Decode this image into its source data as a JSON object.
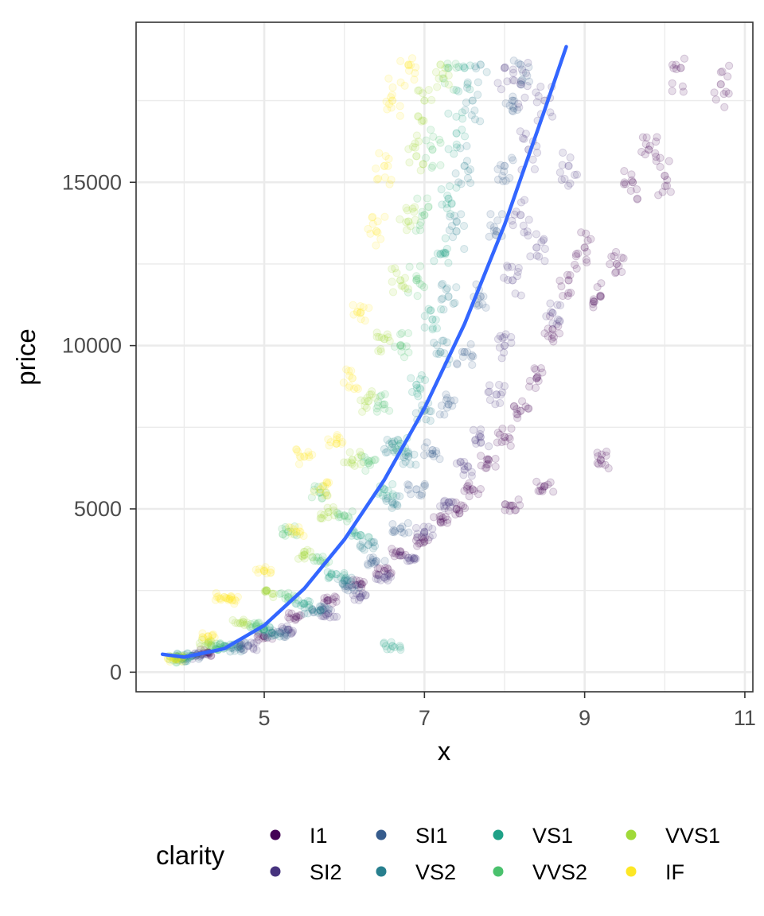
{
  "chart_data": {
    "type": "scatter",
    "xlabel": "x",
    "ylabel": "price",
    "xlim": [
      3.4,
      11.1
    ],
    "ylim": [
      -600,
      19900
    ],
    "x_ticks": [
      5,
      7,
      9,
      11
    ],
    "x_tick_labels": [
      "5",
      "7",
      "9",
      "11"
    ],
    "y_ticks": [
      0,
      5000,
      10000,
      15000
    ],
    "y_tick_labels": [
      "0",
      "5000",
      "10000",
      "15000"
    ],
    "x_minor_ticks": [
      4,
      6,
      8,
      10
    ],
    "y_minor_ticks": [
      2500,
      7500,
      12500,
      17500
    ],
    "grid": true,
    "legend": {
      "title": "clarity",
      "placement": "bottom",
      "items": [
        {
          "label": "I1",
          "color": "#440154"
        },
        {
          "label": "SI2",
          "color": "#46337E"
        },
        {
          "label": "SI1",
          "color": "#365C8D"
        },
        {
          "label": "VS2",
          "color": "#277F8E"
        },
        {
          "label": "VS1",
          "color": "#1FA187"
        },
        {
          "label": "VVS2",
          "color": "#4AC16D"
        },
        {
          "label": "VVS1",
          "color": "#A0DA39"
        },
        {
          "label": "IF",
          "color": "#FDE725"
        }
      ]
    },
    "series": [
      {
        "name": "I1",
        "color": "#440154",
        "points": [
          [
            4.3,
            600
          ],
          [
            5.0,
            1100
          ],
          [
            5.4,
            1700
          ],
          [
            5.8,
            2200
          ],
          [
            6.2,
            2700
          ],
          [
            6.5,
            3100
          ],
          [
            6.7,
            3700
          ],
          [
            7.0,
            4000
          ],
          [
            7.2,
            4600
          ],
          [
            7.4,
            5000
          ],
          [
            7.6,
            5600
          ],
          [
            7.8,
            6500
          ],
          [
            8.0,
            7200
          ],
          [
            8.2,
            8000
          ],
          [
            8.4,
            9000
          ],
          [
            8.6,
            10500
          ],
          [
            8.8,
            12000
          ],
          [
            9.0,
            13000
          ],
          [
            9.2,
            11500
          ],
          [
            9.4,
            12500
          ],
          [
            9.6,
            15000
          ],
          [
            9.8,
            16000
          ],
          [
            10.0,
            15200
          ],
          [
            10.2,
            18500
          ],
          [
            10.7,
            18000
          ],
          [
            9.2,
            6500
          ],
          [
            8.5,
            5700
          ],
          [
            8.1,
            5100
          ]
        ]
      },
      {
        "name": "SI2",
        "color": "#46337E",
        "points": [
          [
            4.2,
            500
          ],
          [
            4.8,
            800
          ],
          [
            5.3,
            1300
          ],
          [
            5.8,
            1800
          ],
          [
            6.2,
            2300
          ],
          [
            6.5,
            2900
          ],
          [
            6.8,
            3500
          ],
          [
            7.0,
            4300
          ],
          [
            7.3,
            5200
          ],
          [
            7.5,
            6200
          ],
          [
            7.7,
            7200
          ],
          [
            7.9,
            8500
          ],
          [
            8.0,
            10000
          ],
          [
            8.1,
            12000
          ],
          [
            8.2,
            14000
          ],
          [
            8.3,
            16000
          ],
          [
            8.2,
            18000
          ],
          [
            8.5,
            17500
          ],
          [
            8.4,
            13000
          ],
          [
            8.6,
            11000
          ],
          [
            8.8,
            15500
          ],
          [
            8.0,
            18500
          ]
        ]
      },
      {
        "name": "SI1",
        "color": "#365C8D",
        "points": [
          [
            4.1,
            500
          ],
          [
            4.7,
            800
          ],
          [
            5.2,
            1200
          ],
          [
            5.7,
            1900
          ],
          [
            6.1,
            2600
          ],
          [
            6.4,
            3400
          ],
          [
            6.7,
            4400
          ],
          [
            6.9,
            5600
          ],
          [
            7.1,
            6800
          ],
          [
            7.3,
            8200
          ],
          [
            7.5,
            9800
          ],
          [
            7.7,
            11500
          ],
          [
            7.9,
            13500
          ],
          [
            8.0,
            15500
          ],
          [
            8.1,
            17500
          ],
          [
            8.2,
            18600
          ]
        ]
      },
      {
        "name": "VS2",
        "color": "#277F8E",
        "points": [
          [
            4.0,
            450
          ],
          [
            4.6,
            750
          ],
          [
            5.1,
            1200
          ],
          [
            5.6,
            1900
          ],
          [
            6.0,
            2800
          ],
          [
            6.3,
            3900
          ],
          [
            6.6,
            5200
          ],
          [
            6.8,
            6600
          ],
          [
            7.0,
            8000
          ],
          [
            7.2,
            9800
          ],
          [
            7.3,
            11500
          ],
          [
            7.4,
            13500
          ],
          [
            7.5,
            15500
          ],
          [
            7.6,
            17500
          ],
          [
            7.7,
            18600
          ],
          [
            6.6,
            7000
          ]
        ]
      },
      {
        "name": "VS1",
        "color": "#1FA187",
        "points": [
          [
            4.0,
            450
          ],
          [
            4.5,
            800
          ],
          [
            5.0,
            1300
          ],
          [
            5.5,
            2100
          ],
          [
            5.9,
            3000
          ],
          [
            6.2,
            4200
          ],
          [
            6.5,
            5600
          ],
          [
            6.7,
            7000
          ],
          [
            6.9,
            8800
          ],
          [
            7.1,
            10800
          ],
          [
            7.2,
            12800
          ],
          [
            7.3,
            14500
          ],
          [
            7.4,
            16500
          ],
          [
            7.5,
            18500
          ],
          [
            6.6,
            800
          ]
        ]
      },
      {
        "name": "VVS2",
        "color": "#4AC16D",
        "points": [
          [
            3.9,
            400
          ],
          [
            4.4,
            800
          ],
          [
            4.9,
            1400
          ],
          [
            5.3,
            2300
          ],
          [
            5.7,
            3400
          ],
          [
            6.0,
            4800
          ],
          [
            6.3,
            6400
          ],
          [
            6.5,
            8200
          ],
          [
            6.7,
            10000
          ],
          [
            6.9,
            12000
          ],
          [
            7.0,
            14000
          ],
          [
            7.1,
            16000
          ],
          [
            7.3,
            18500
          ],
          [
            5.3,
            4300
          ],
          [
            5.7,
            5500
          ]
        ]
      },
      {
        "name": "VVS1",
        "color": "#A0DA39",
        "points": [
          [
            3.9,
            400
          ],
          [
            4.3,
            900
          ],
          [
            4.7,
            1500
          ],
          [
            5.1,
            2400
          ],
          [
            5.5,
            3600
          ],
          [
            5.8,
            4900
          ],
          [
            6.1,
            6500
          ],
          [
            6.3,
            8300
          ],
          [
            6.5,
            10200
          ],
          [
            6.7,
            12000
          ],
          [
            6.8,
            13800
          ],
          [
            6.9,
            15800
          ],
          [
            7.0,
            17500
          ],
          [
            7.2,
            18600
          ]
        ]
      },
      {
        "name": "IF",
        "color": "#FDE725",
        "points": [
          [
            3.9,
            400
          ],
          [
            4.3,
            1100
          ],
          [
            4.6,
            2200
          ],
          [
            5.0,
            3100
          ],
          [
            5.4,
            4300
          ],
          [
            5.7,
            5600
          ],
          [
            5.9,
            7000
          ],
          [
            6.1,
            9000
          ],
          [
            6.2,
            11000
          ],
          [
            6.4,
            13500
          ],
          [
            6.5,
            15500
          ],
          [
            6.6,
            17500
          ],
          [
            6.8,
            18600
          ],
          [
            5.5,
            6600
          ],
          [
            4.5,
            2300
          ]
        ]
      }
    ],
    "fit_line": {
      "color": "#3366FF",
      "points": [
        [
          3.73,
          550
        ],
        [
          4.0,
          460
        ],
        [
          4.5,
          720
        ],
        [
          5.0,
          1430
        ],
        [
          5.5,
          2560
        ],
        [
          6.0,
          4060
        ],
        [
          6.5,
          5890
        ],
        [
          7.0,
          8080
        ],
        [
          7.5,
          10660
        ],
        [
          8.0,
          13700
        ],
        [
          8.5,
          17210
        ],
        [
          8.77,
          19150
        ]
      ]
    }
  }
}
